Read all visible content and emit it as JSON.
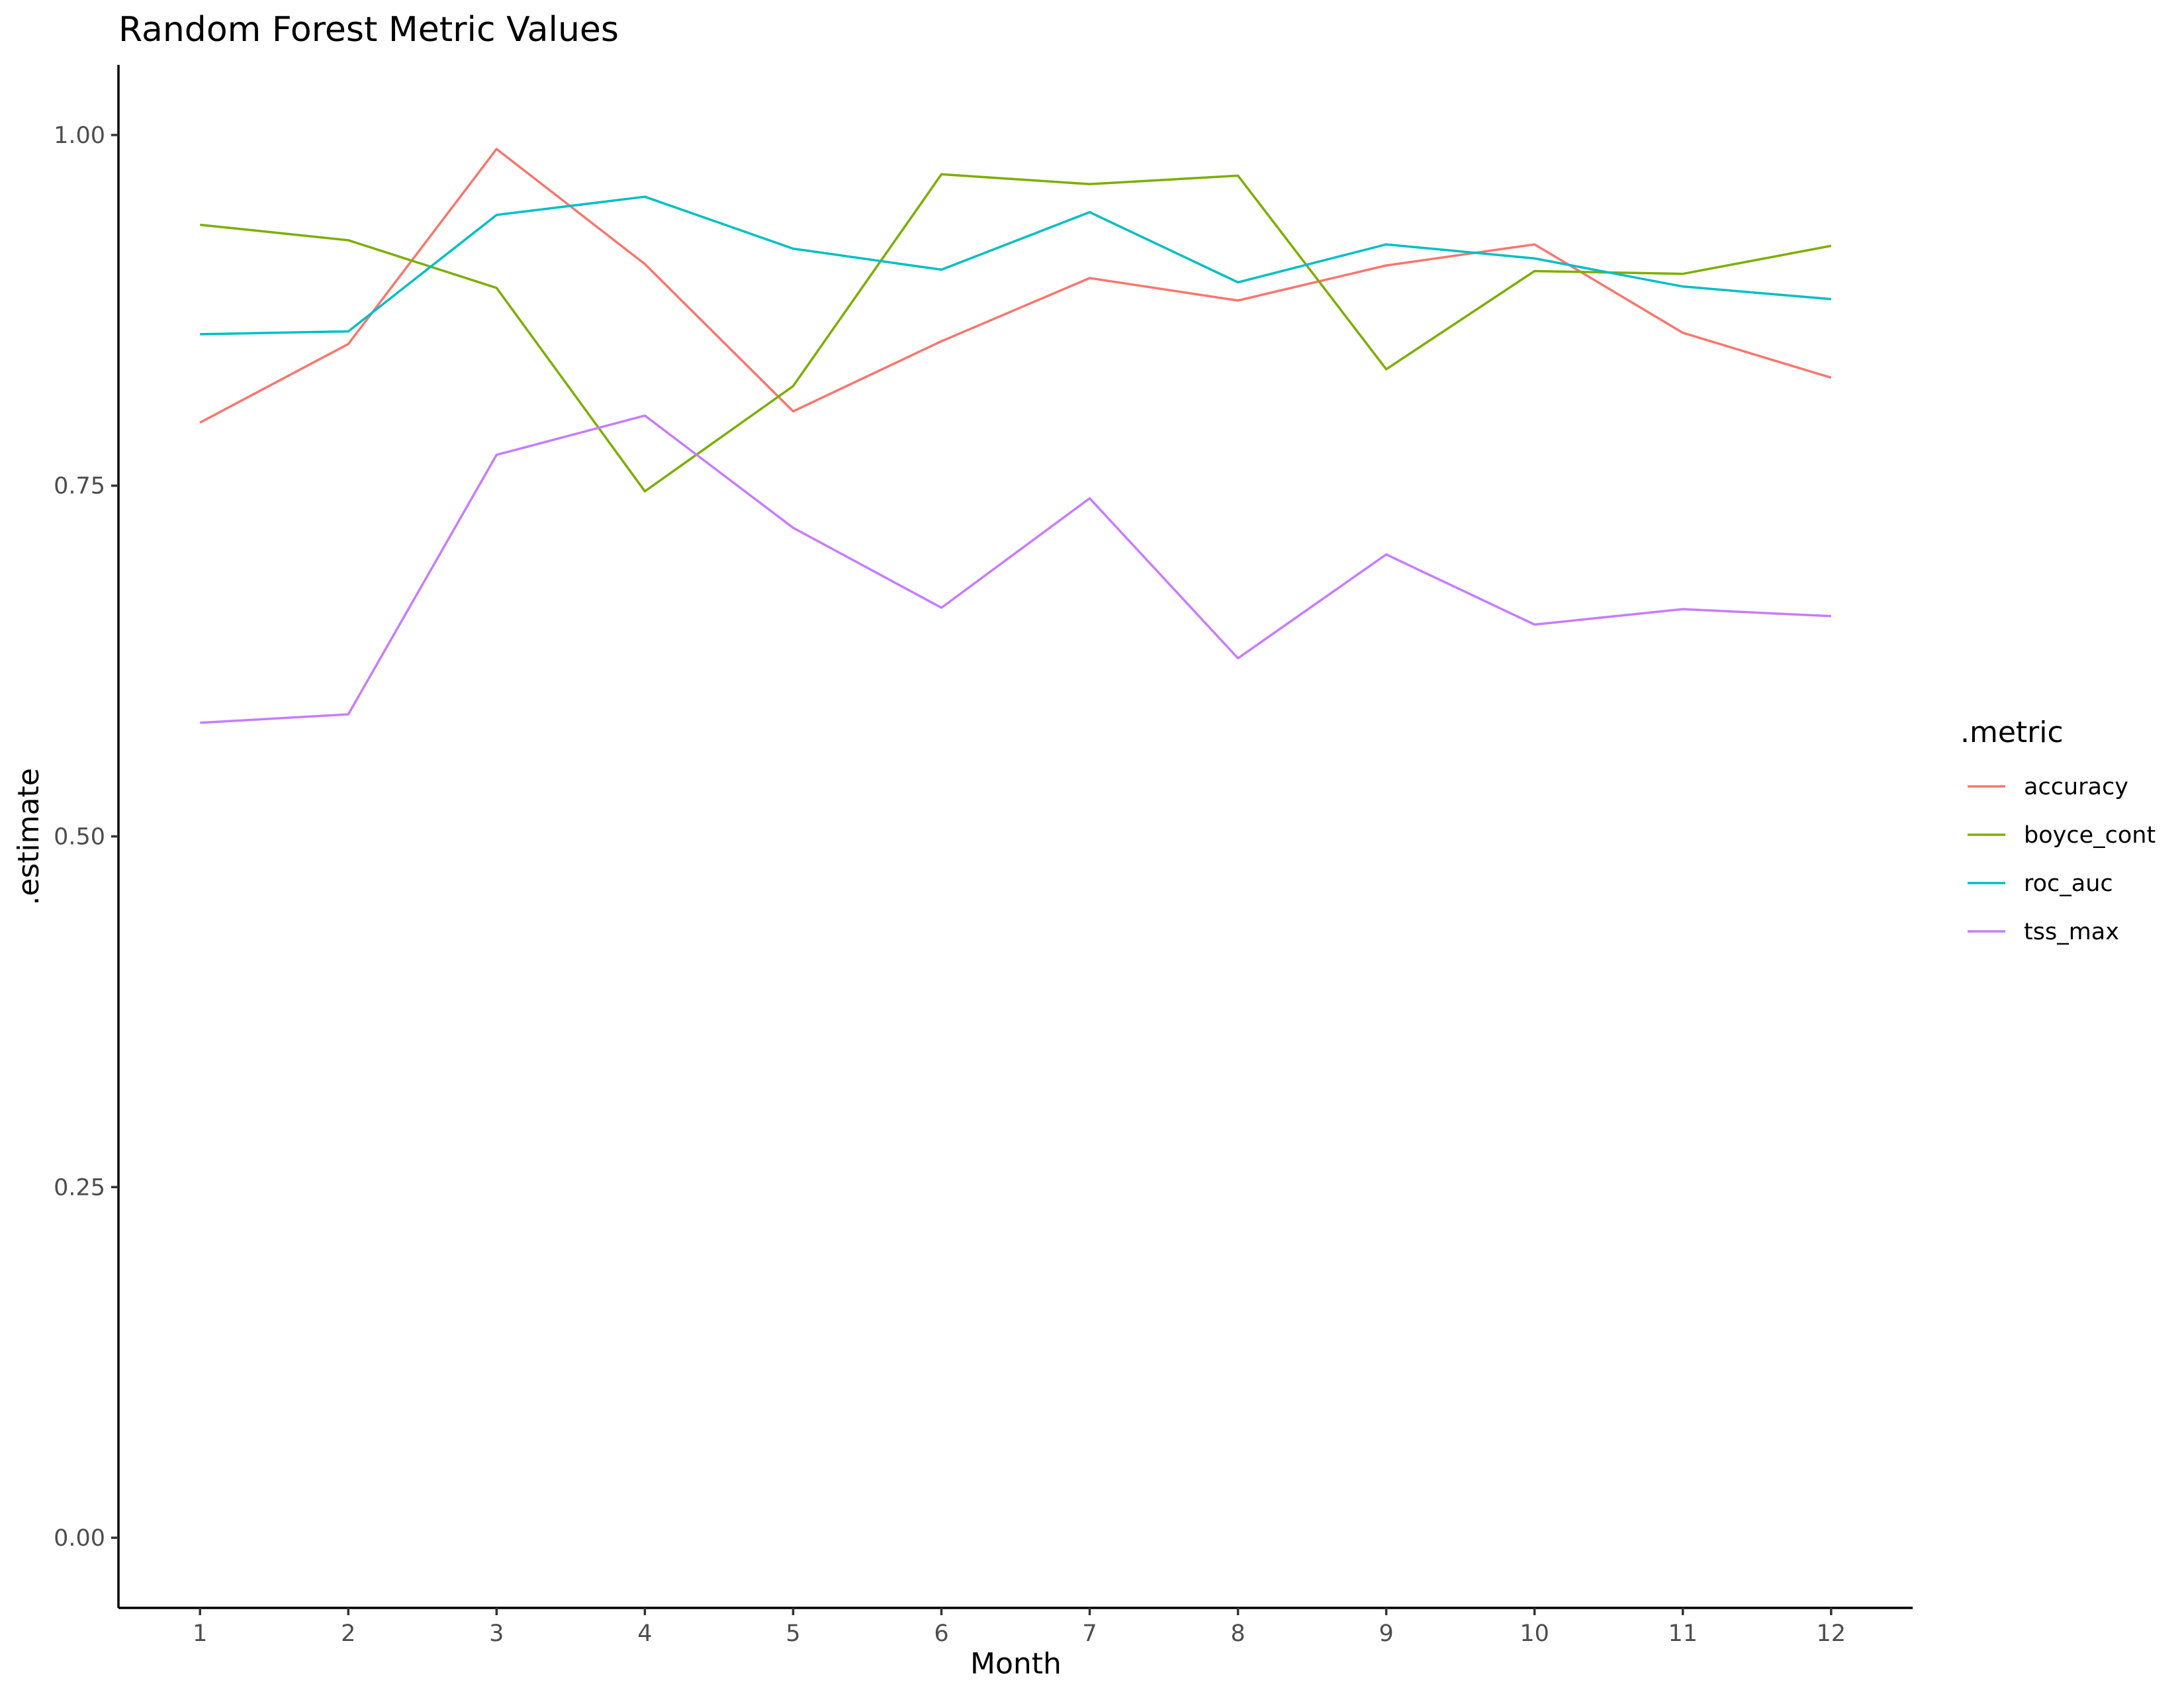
{
  "chart_data": {
    "type": "line",
    "title": "Random Forest Metric Values",
    "xlabel": "Month",
    "ylabel": ".estimate",
    "x": [
      1,
      2,
      3,
      4,
      5,
      6,
      7,
      8,
      9,
      10,
      11,
      12
    ],
    "x_tick_labels": [
      "1",
      "2",
      "3",
      "4",
      "5",
      "6",
      "7",
      "8",
      "9",
      "10",
      "11",
      "12"
    ],
    "xlim": [
      0.45,
      12.55
    ],
    "y_ticks": [
      0.0,
      0.25,
      0.5,
      0.75,
      1.0
    ],
    "y_tick_labels": [
      "0.00",
      "0.25",
      "0.50",
      "0.75",
      "1.00"
    ],
    "ylim": [
      -0.05,
      1.05
    ],
    "grid": false,
    "legend": {
      "title": ".metric",
      "position": "right"
    },
    "series": [
      {
        "name": "accuracy",
        "color": "#F8766D",
        "values": [
          0.795,
          0.851,
          0.99,
          0.908,
          0.803,
          0.853,
          0.898,
          0.882,
          0.907,
          0.922,
          0.859,
          0.827
        ]
      },
      {
        "name": "boyce_cont",
        "color": "#7CAE00",
        "values": [
          0.936,
          0.925,
          0.891,
          0.746,
          0.821,
          0.972,
          0.965,
          0.971,
          0.833,
          0.903,
          0.901,
          0.921
        ]
      },
      {
        "name": "roc_auc",
        "color": "#00BFC4",
        "values": [
          0.858,
          0.86,
          0.943,
          0.956,
          0.919,
          0.904,
          0.945,
          0.895,
          0.922,
          0.912,
          0.892,
          0.883
        ]
      },
      {
        "name": "tss_max",
        "color": "#C77CFF",
        "values": [
          0.581,
          0.587,
          0.772,
          0.8,
          0.72,
          0.663,
          0.741,
          0.627,
          0.701,
          0.651,
          0.662,
          0.657
        ]
      }
    ]
  }
}
